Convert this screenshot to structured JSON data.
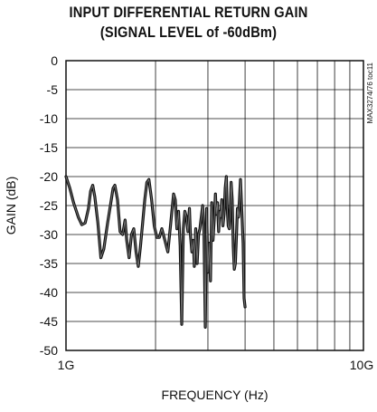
{
  "chart_data": {
    "type": "line",
    "title": "INPUT DIFFERENTIAL RETURN GAIN",
    "subtitle": "(SIGNAL LEVEL of -60dBm)",
    "xlabel": "FREQUENCY (Hz)",
    "ylabel": "GAIN (dB)",
    "x_scale": "log",
    "xlim": [
      1000000000,
      10000000000
    ],
    "ylim": [
      -50,
      0
    ],
    "x_tick_labels": [
      "1G",
      "10G"
    ],
    "y_ticks": [
      0,
      -5,
      -10,
      -15,
      -20,
      -25,
      -30,
      -35,
      -40,
      -45,
      -50
    ],
    "y_tick_labels": [
      "0",
      "-5",
      "-10",
      "-15",
      "-20",
      "-25",
      "-30",
      "-35",
      "-40",
      "-45",
      "-50"
    ],
    "grid": true,
    "annotation": "MAX3274/76 toc11",
    "series": [
      {
        "x": [
          1000000000,
          1030000000,
          1060000000,
          1100000000,
          1130000000,
          1160000000,
          1190000000,
          1210000000,
          1230000000,
          1250000000,
          1280000000,
          1310000000,
          1340000000,
          1380000000,
          1420000000,
          1440000000,
          1460000000,
          1490000000,
          1520000000,
          1550000000,
          1580000000,
          1600000000,
          1630000000,
          1660000000,
          1690000000,
          1720000000,
          1750000000,
          1780000000,
          1810000000,
          1840000000,
          1870000000,
          1900000000,
          1940000000,
          1980000000,
          2020000000,
          2060000000,
          2100000000,
          2150000000,
          2200000000,
          2250000000,
          2300000000,
          2330000000,
          2360000000,
          2390000000,
          2420000000,
          2450000000,
          2480000000,
          2510000000,
          2540000000,
          2570000000,
          2600000000,
          2620000000,
          2650000000,
          2680000000,
          2700000000,
          2730000000,
          2760000000,
          2790000000,
          2820000000,
          2850000000,
          2880000000,
          2910000000,
          2940000000,
          2970000000,
          3000000000,
          3030000000,
          3060000000,
          3090000000,
          3120000000,
          3150000000,
          3180000000,
          3200000000,
          3230000000,
          3260000000,
          3290000000,
          3310000000,
          3340000000,
          3370000000,
          3400000000,
          3430000000,
          3460000000,
          3480000000,
          3510000000,
          3540000000,
          3560000000,
          3590000000,
          3620000000,
          3650000000,
          3680000000,
          3710000000,
          3740000000,
          3770000000,
          3800000000,
          3830000000,
          3860000000,
          3900000000,
          3940000000,
          3970000000,
          4000000000
        ],
        "y": [
          -20,
          -22,
          -24.5,
          -27,
          -28.3,
          -28,
          -25.5,
          -22.5,
          -21.5,
          -23.5,
          -28,
          -34,
          -32.5,
          -28,
          -24,
          -22,
          -21.5,
          -24,
          -29.5,
          -30,
          -27.5,
          -31,
          -34,
          -30,
          -29,
          -33,
          -35.5,
          -32,
          -28,
          -24,
          -21,
          -20.5,
          -24,
          -28.5,
          -30.5,
          -30.5,
          -29,
          -31,
          -33,
          -28,
          -23,
          -24,
          -29,
          -26,
          -32,
          -45.5,
          -29,
          -26,
          -27,
          -29.5,
          -25.5,
          -30,
          -33,
          -31,
          -35.5,
          -29,
          -35,
          -30,
          -29,
          -27,
          -25,
          -29.5,
          -46,
          -25.5,
          -36.5,
          -31.5,
          -38,
          -24.5,
          -31,
          -27.5,
          -23,
          -26.5,
          -24.5,
          -29.5,
          -26,
          -27,
          -24,
          -28.5,
          -26.5,
          -22,
          -20,
          -25,
          -28.5,
          -29,
          -27,
          -21,
          -24,
          -32,
          -36,
          -35,
          -30.5,
          -25.5,
          -27,
          -24,
          -20.5,
          -26,
          -31.5,
          -41,
          -42.5
        ]
      }
    ]
  }
}
